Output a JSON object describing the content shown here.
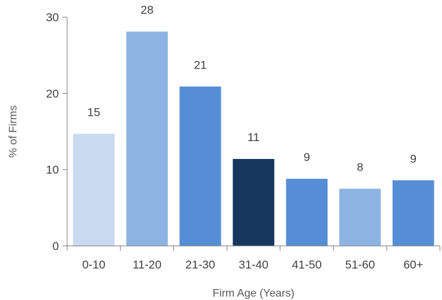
{
  "chart_data": {
    "type": "bar",
    "categories": [
      "0-10",
      "11-20",
      "21-30",
      "31-40",
      "41-50",
      "51-60",
      "60+"
    ],
    "values": [
      14.7,
      28.1,
      20.9,
      11.4,
      8.8,
      7.5,
      8.6
    ],
    "data_labels": [
      "15",
      "28",
      "21",
      "11",
      "9",
      "8",
      "9"
    ],
    "bar_colors": [
      "#c9daf1",
      "#8db3e2",
      "#558ed5",
      "#17375e",
      "#558ed5",
      "#8db3e2",
      "#558ed5"
    ],
    "xlabel": "Firm Age (Years)",
    "ylabel": "% of Firms",
    "ylim": [
      0,
      30
    ],
    "yticks": [
      "0",
      "10",
      "20",
      "30"
    ],
    "grid": false,
    "legend": "none"
  }
}
